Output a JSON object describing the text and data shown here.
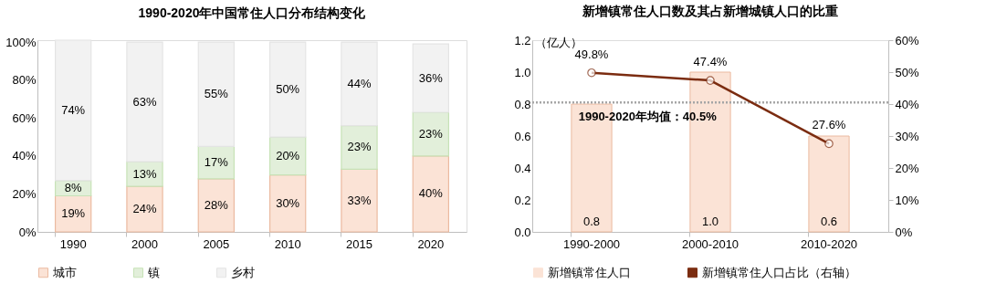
{
  "chart_data": [
    {
      "type": "bar",
      "title": "1990-2020年中国常住人口分布结构变化",
      "stacked": true,
      "legend": "bottom",
      "grid": false,
      "categories": [
        "1990",
        "2000",
        "2005",
        "2010",
        "2015",
        "2020"
      ],
      "series": [
        {
          "name": "城市",
          "color": "#fbe3d6",
          "values": [
            19,
            24,
            28,
            30,
            33,
            40
          ],
          "value_labels": [
            "19%",
            "24%",
            "28%",
            "30%",
            "33%",
            "40%"
          ]
        },
        {
          "name": "镇",
          "color": "#e2efda",
          "values": [
            8,
            13,
            17,
            20,
            23,
            23
          ],
          "value_labels": [
            "8%",
            "13%",
            "17%",
            "20%",
            "23%",
            "23%"
          ]
        },
        {
          "name": "乡村",
          "color": "#f2f2f2",
          "values": [
            74,
            63,
            55,
            50,
            44,
            36
          ],
          "value_labels": [
            "74%",
            "63%",
            "55%",
            "50%",
            "44%",
            "36%"
          ]
        }
      ],
      "ylim": [
        0,
        101
      ],
      "yticks": [
        {
          "value": 0,
          "label": "0%"
        },
        {
          "value": 20,
          "label": "20%"
        },
        {
          "value": 40,
          "label": "40%"
        },
        {
          "value": 60,
          "label": "60%"
        },
        {
          "value": 80,
          "label": "80%"
        },
        {
          "value": 100,
          "label": "100%"
        }
      ]
    },
    {
      "type": "bar",
      "title": "新增镇常住人口数及其占新增城镇人口的比重",
      "ylabel": "（亿人）",
      "legend": "bottom",
      "grid": false,
      "categories": [
        "1990-2000",
        "2000-2010",
        "2010-2020"
      ],
      "series": [
        {
          "name": "新增镇常住人口",
          "type": "bar",
          "color": "#fbe3d6",
          "values": [
            0.8,
            1.0,
            0.6
          ],
          "value_labels": [
            "0.8",
            "1.0",
            "0.6"
          ]
        },
        {
          "name": "新增镇常住人口占比（右轴）",
          "type": "line",
          "axis": "y2",
          "color": "#7b2c10",
          "marker": "circle",
          "values": [
            49.8,
            47.4,
            27.6
          ],
          "value_labels": [
            "49.8%",
            "47.4%",
            "27.6%"
          ]
        }
      ],
      "ylim": [
        0,
        1.2
      ],
      "yticks": [
        {
          "value": 0,
          "label": "0.0"
        },
        {
          "value": 0.2,
          "label": "0.2"
        },
        {
          "value": 0.4,
          "label": "0.4"
        },
        {
          "value": 0.6,
          "label": "0.6"
        },
        {
          "value": 0.8,
          "label": "0.8"
        },
        {
          "value": 1.0,
          "label": "1.0"
        },
        {
          "value": 1.2,
          "label": "1.2"
        }
      ],
      "y2lim": [
        0,
        60
      ],
      "y2ticks": [
        {
          "value": 0,
          "label": "0%"
        },
        {
          "value": 10,
          "label": "10%"
        },
        {
          "value": 20,
          "label": "20%"
        },
        {
          "value": 30,
          "label": "30%"
        },
        {
          "value": 40,
          "label": "40%"
        },
        {
          "value": 50,
          "label": "50%"
        },
        {
          "value": 60,
          "label": "60%"
        }
      ],
      "ref_lines": [
        {
          "axis": "y2",
          "value": 40.5,
          "label": "1990-2020年均值：40.5%",
          "color": "#a6a6a6",
          "line_style": "dotted"
        }
      ]
    }
  ]
}
